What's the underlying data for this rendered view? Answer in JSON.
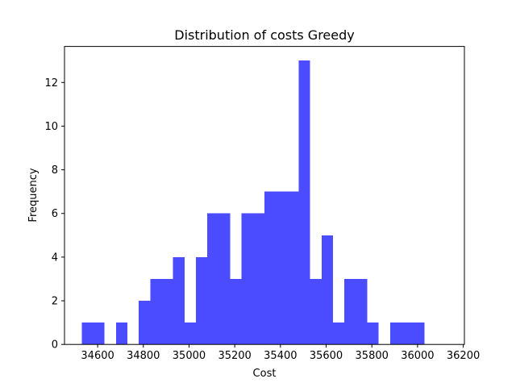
{
  "chart_data": {
    "type": "bar",
    "title": "Distribution of costs Greedy",
    "xlabel": "Cost",
    "ylabel": "Frequency",
    "bin_start": 34530,
    "bin_width": 50,
    "values": [
      1,
      1,
      0,
      1,
      0,
      2,
      3,
      3,
      4,
      1,
      4,
      6,
      6,
      3,
      6,
      6,
      7,
      7,
      7,
      13,
      3,
      5,
      1,
      3,
      3,
      1,
      0,
      1,
      1,
      1
    ],
    "xlim": [
      34455,
      36205
    ],
    "ylim": [
      0,
      13.65
    ],
    "xticks": [
      34600,
      34800,
      35000,
      35200,
      35400,
      35600,
      35800,
      36000,
      36200
    ],
    "yticks": [
      0,
      2,
      4,
      6,
      8,
      10,
      12
    ],
    "bar_color": "#4b4bff",
    "grid": false
  }
}
